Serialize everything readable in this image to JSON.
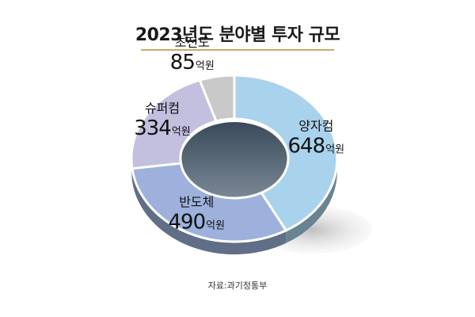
{
  "chart_data": {
    "type": "pie",
    "title": "2023년도 분야별 투자 규모",
    "unit": "억원",
    "categories": [
      "양자컴",
      "반도체",
      "슈퍼컴",
      "초전도"
    ],
    "values": [
      648,
      490,
      334,
      85
    ],
    "colors": [
      "#a9d3ec",
      "#9db1dc",
      "#c2bfdf",
      "#c9c9c9"
    ],
    "legend": "none",
    "grid": false
  },
  "source": "자료:과기정통부"
}
